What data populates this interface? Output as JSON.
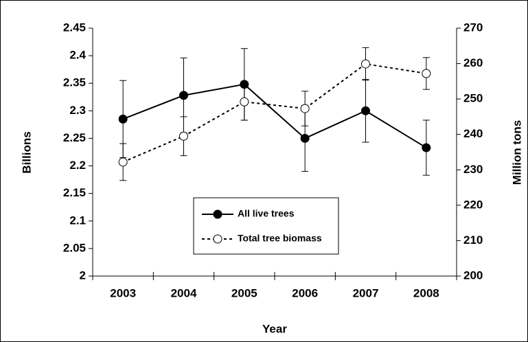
{
  "chart_data": {
    "type": "line",
    "x_label": "Year",
    "y_label": "Billions",
    "y2_label": "Million tons",
    "categories": [
      "2003",
      "2004",
      "2005",
      "2006",
      "2007",
      "2008"
    ],
    "series": [
      {
        "name": "All live trees",
        "color": "#000000",
        "marker_fill": "#000000",
        "line_style": "solid",
        "axis": "y",
        "values": [
          2.285,
          2.328,
          2.348,
          2.25,
          2.3,
          2.233
        ],
        "errors": [
          0.07,
          0.068,
          0.065,
          0.06,
          0.057,
          0.05
        ]
      },
      {
        "name": "Total tree biomass",
        "color": "#000000",
        "marker_fill": "#ffffff",
        "line_style": "dashed",
        "axis": "y2",
        "values": [
          232.2,
          239.5,
          249.2,
          247.3,
          259.9,
          257.2
        ],
        "errors": [
          5.2,
          5.5,
          5.2,
          4.9,
          4.6,
          4.5
        ]
      }
    ],
    "ylim": [
      2,
      2.45
    ],
    "yticks": [
      2,
      2.05,
      2.1,
      2.15,
      2.2,
      2.25,
      2.3,
      2.35,
      2.4,
      2.45
    ],
    "y2lim": [
      200,
      270
    ],
    "y2ticks": [
      200,
      210,
      220,
      230,
      240,
      250,
      260,
      270
    ],
    "grid": false,
    "legend": "lower center"
  }
}
